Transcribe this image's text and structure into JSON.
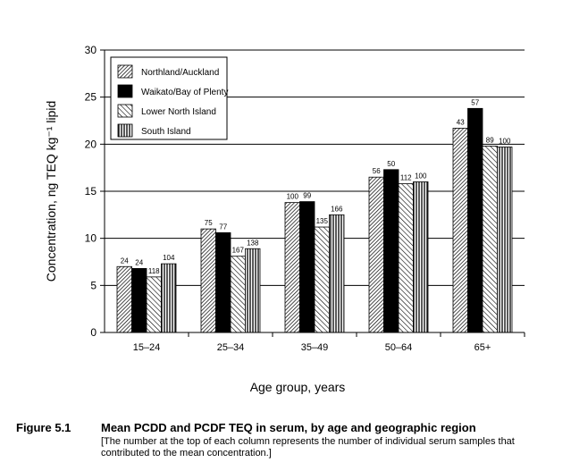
{
  "chart_data": {
    "type": "bar",
    "categories": [
      "15–24",
      "25–34",
      "35–49",
      "50–64",
      "65+"
    ],
    "ylabel": "Concentration, ng TEQ kg⁻¹ lipid",
    "xlabel": "Age group, years",
    "ylim": [
      0,
      30
    ],
    "yticks": [
      0,
      5,
      10,
      15,
      20,
      25,
      30
    ],
    "grid": true,
    "legend_position": "top-left",
    "series": [
      {
        "name": "Northland/Auckland",
        "pattern": "diag-dense",
        "values": [
          7.0,
          11.0,
          13.8,
          16.5,
          21.7
        ],
        "sample_labels": [
          "24",
          "75",
          "100",
          "56",
          "43"
        ]
      },
      {
        "name": "Waikato/Bay of Plenty",
        "pattern": "solid",
        "values": [
          6.8,
          10.6,
          13.9,
          17.3,
          23.8
        ],
        "sample_labels": [
          "24",
          "77",
          "99",
          "50",
          "57"
        ]
      },
      {
        "name": "Lower North Island",
        "pattern": "diag-wide",
        "values": [
          5.9,
          8.1,
          11.2,
          15.8,
          19.8
        ],
        "sample_labels": [
          "118",
          "167",
          "135",
          "112",
          "89"
        ]
      },
      {
        "name": "South Island",
        "pattern": "vertical",
        "values": [
          7.3,
          8.9,
          12.5,
          16.0,
          19.7
        ],
        "sample_labels": [
          "104",
          "138",
          "166",
          "100",
          "100"
        ]
      }
    ]
  },
  "caption": {
    "number": "Figure 5.1",
    "title": "Mean PCDD and PCDF TEQ in serum, by age and geographic region",
    "note": "[The number at the top of each column represents the number of individual serum samples that contributed to the mean concentration.]"
  }
}
